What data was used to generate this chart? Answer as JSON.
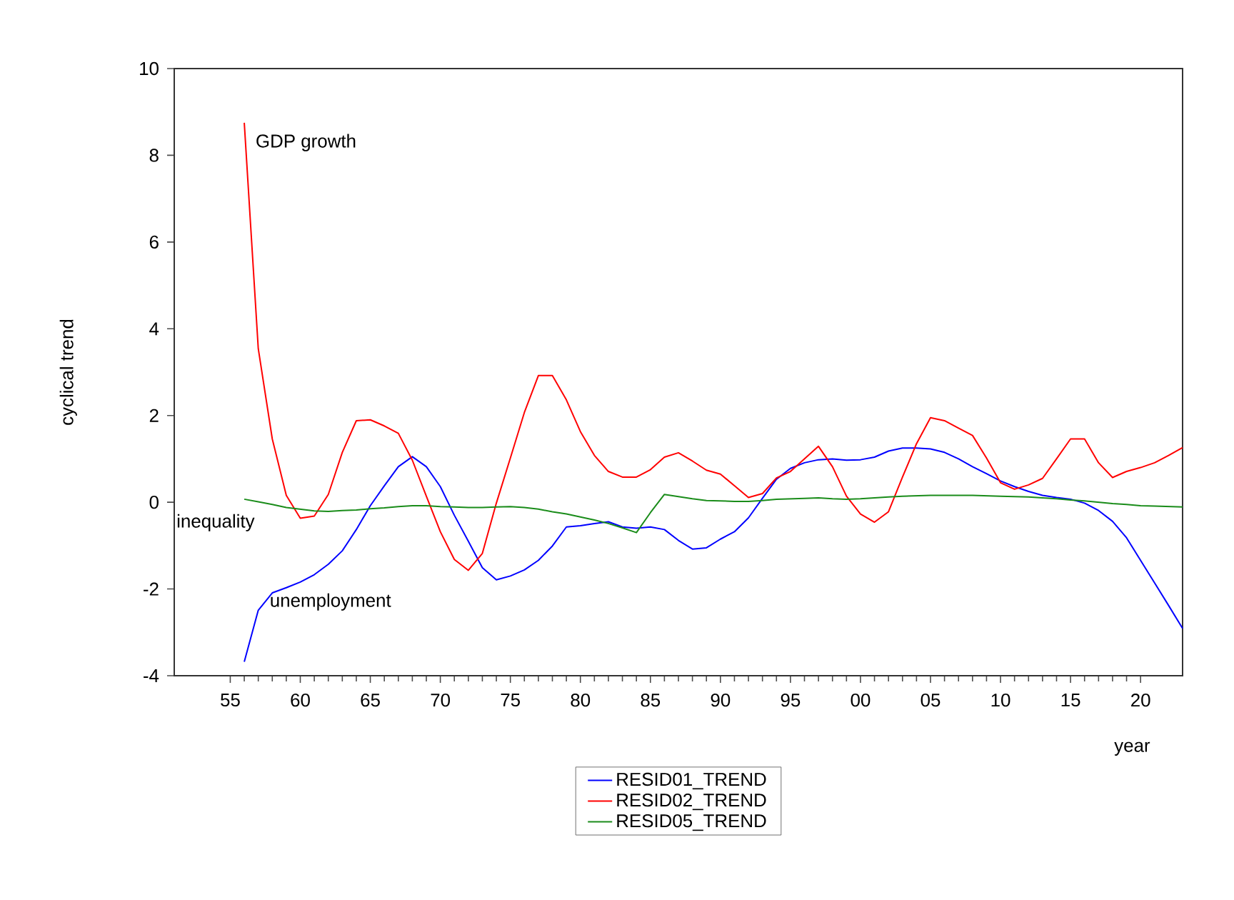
{
  "chart_data": {
    "type": "line",
    "xlabel": "year",
    "ylabel": "cyclical trend",
    "x": [
      1956,
      1957,
      1958,
      1959,
      1960,
      1961,
      1962,
      1963,
      1964,
      1965,
      1966,
      1967,
      1968,
      1969,
      1970,
      1971,
      1972,
      1973,
      1974,
      1975,
      1976,
      1977,
      1978,
      1979,
      1980,
      1981,
      1982,
      1983,
      1984,
      1985,
      1986,
      1987,
      1988,
      1989,
      1990,
      1991,
      1992,
      1993,
      1994,
      1995,
      1996,
      1997,
      1998,
      1999,
      2000,
      2001,
      2002,
      2003,
      2004,
      2005,
      2006,
      2007,
      2008,
      2009,
      2010,
      2011,
      2012,
      2013,
      2014,
      2015,
      2016,
      2017,
      2018,
      2019,
      2020,
      2021,
      2022,
      2023
    ],
    "series": [
      {
        "name": "RESID01_TREND",
        "color": "#0000ff",
        "values": [
          -3.68,
          -2.49,
          -2.09,
          -1.97,
          -1.84,
          -1.67,
          -1.43,
          -1.12,
          -0.63,
          -0.08,
          0.38,
          0.82,
          1.05,
          0.82,
          0.36,
          -0.3,
          -0.9,
          -1.51,
          -1.79,
          -1.7,
          -1.56,
          -1.34,
          -1.01,
          -0.57,
          -0.54,
          -0.49,
          -0.45,
          -0.57,
          -0.6,
          -0.57,
          -0.63,
          -0.88,
          -1.08,
          -1.05,
          -0.85,
          -0.68,
          -0.36,
          0.09,
          0.53,
          0.78,
          0.91,
          0.98,
          1.0,
          0.97,
          0.98,
          1.04,
          1.18,
          1.25,
          1.25,
          1.23,
          1.15,
          1.0,
          0.82,
          0.66,
          0.49,
          0.36,
          0.25,
          0.16,
          0.11,
          0.07,
          -0.02,
          -0.19,
          -0.44,
          -0.82,
          -1.34,
          -1.86,
          -2.38,
          -2.91
        ]
      },
      {
        "name": "RESID02_TREND",
        "color": "#ff0000",
        "values": [
          8.75,
          3.54,
          1.46,
          0.16,
          -0.37,
          -0.32,
          0.18,
          1.15,
          1.88,
          1.9,
          1.76,
          1.59,
          0.97,
          0.14,
          -0.68,
          -1.32,
          -1.57,
          -1.18,
          -0.02,
          1.02,
          2.07,
          2.92,
          2.92,
          2.36,
          1.63,
          1.08,
          0.71,
          0.58,
          0.58,
          0.75,
          1.04,
          1.14,
          0.95,
          0.74,
          0.65,
          0.38,
          0.11,
          0.2,
          0.56,
          0.71,
          1.0,
          1.29,
          0.82,
          0.14,
          -0.27,
          -0.46,
          -0.22,
          0.58,
          1.35,
          1.95,
          1.88,
          1.71,
          1.54,
          1.02,
          0.45,
          0.3,
          0.4,
          0.55,
          1.0,
          1.46,
          1.46,
          0.91,
          0.57,
          0.71,
          0.8,
          0.91,
          1.08,
          1.26
        ]
      },
      {
        "name": "RESID05_TREND",
        "color": "#1a8c1a",
        "values": [
          0.07,
          0.01,
          -0.05,
          -0.12,
          -0.16,
          -0.2,
          -0.21,
          -0.19,
          -0.18,
          -0.15,
          -0.13,
          -0.1,
          -0.08,
          -0.08,
          -0.1,
          -0.11,
          -0.12,
          -0.12,
          -0.11,
          -0.1,
          -0.12,
          -0.16,
          -0.22,
          -0.27,
          -0.34,
          -0.41,
          -0.49,
          -0.59,
          -0.7,
          -0.24,
          0.18,
          0.13,
          0.08,
          0.04,
          0.03,
          0.02,
          0.02,
          0.04,
          0.07,
          0.08,
          0.09,
          0.1,
          0.08,
          0.07,
          0.08,
          0.1,
          0.12,
          0.14,
          0.15,
          0.16,
          0.16,
          0.16,
          0.16,
          0.15,
          0.14,
          0.13,
          0.12,
          0.1,
          0.08,
          0.05,
          0.03,
          0.0,
          -0.03,
          -0.05,
          -0.08,
          -0.09,
          -0.1,
          -0.11
        ]
      }
    ],
    "xlim": [
      1951,
      2023
    ],
    "ylim": [
      -4,
      10
    ],
    "xticks": [
      {
        "value": 1955,
        "label": "55"
      },
      {
        "value": 1960,
        "label": "60"
      },
      {
        "value": 1965,
        "label": "65"
      },
      {
        "value": 1970,
        "label": "70"
      },
      {
        "value": 1975,
        "label": "75"
      },
      {
        "value": 1980,
        "label": "80"
      },
      {
        "value": 1985,
        "label": "85"
      },
      {
        "value": 1990,
        "label": "90"
      },
      {
        "value": 1995,
        "label": "95"
      },
      {
        "value": 2000,
        "label": "00"
      },
      {
        "value": 2005,
        "label": "05"
      },
      {
        "value": 2010,
        "label": "10"
      },
      {
        "value": 2015,
        "label": "15"
      },
      {
        "value": 2020,
        "label": "20"
      }
    ],
    "yticks": [
      -4,
      -2,
      0,
      2,
      4,
      6,
      8,
      10
    ],
    "annotations": [
      "GDP growth",
      "inequality",
      {
        "text": "unemployment",
        "x": 1957.7,
        "y": -2.3
      }
    ],
    "legend": "bottom"
  }
}
